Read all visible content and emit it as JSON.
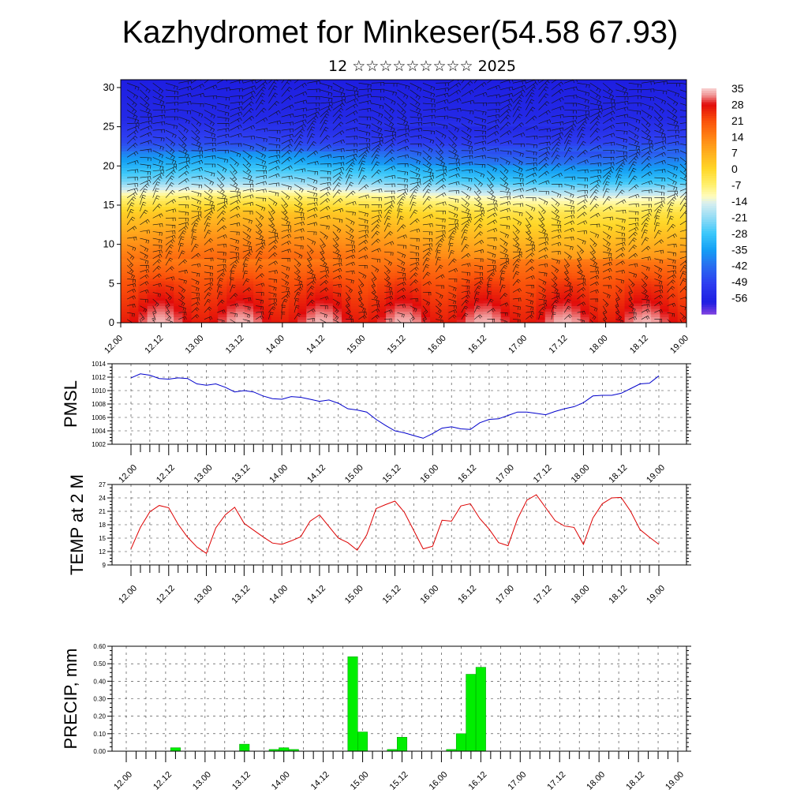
{
  "title": "Kazhydromet for Minkeser(54.58 67.93)",
  "subtitle": "12 ☆☆☆☆☆☆☆☆☆ 2025",
  "colors": {
    "pressure_line": "#0000cc",
    "temp_line": "#dd0000",
    "precip_bar": "#00ee00",
    "precip_bar_edge": "#009900"
  },
  "chart_data": [
    {
      "type": "heatmap",
      "name": "vertical-cross-section",
      "x_ticks": [
        "12.00",
        "12.12",
        "13.00",
        "13.12",
        "14.00",
        "14.12",
        "15.00",
        "15.12",
        "16.00",
        "16.12",
        "17.00",
        "17.12",
        "18.00",
        "18.12",
        "19.00"
      ],
      "yticks": [
        "0",
        "5",
        "10",
        "15",
        "20",
        "25",
        "30"
      ],
      "ylim": [
        0,
        31
      ],
      "colorbar_labels": [
        "35",
        "28",
        "21",
        "14",
        "7",
        "0",
        "-7",
        "-14",
        "-21",
        "-28",
        "-35",
        "-42",
        "-49",
        "-56"
      ],
      "colorbar_range": [
        -63,
        35
      ],
      "temp_profile": {
        "levels": [
          0,
          5,
          10,
          14,
          16,
          18,
          21,
          23,
          26,
          31
        ],
        "values": [
          30,
          22,
          10,
          0,
          -10,
          -25,
          -38,
          -48,
          -55,
          -58
        ]
      },
      "wind_vectors": true
    },
    {
      "type": "line",
      "name": "pmsl",
      "ylabel": "PMSL",
      "yticks": [
        "1002",
        "1004",
        "1006",
        "1008",
        "1010",
        "1012",
        "1014"
      ],
      "ylim": [
        1002,
        1014
      ],
      "x_ticks": [
        "12.00",
        "12.12",
        "13.00",
        "13.12",
        "14.00",
        "14.12",
        "15.00",
        "15.12",
        "16.00",
        "16.12",
        "17.00",
        "17.12",
        "18.00",
        "18.12",
        "19.00"
      ],
      "x_hours": [
        0,
        3,
        6,
        9,
        12,
        15,
        18,
        21,
        24,
        27,
        30,
        33,
        36,
        39,
        42,
        45,
        48,
        51,
        54,
        57,
        60,
        63,
        66,
        69,
        72,
        75,
        78,
        81,
        84,
        87,
        90,
        93,
        96,
        99,
        102,
        105,
        108,
        111,
        114,
        117,
        120,
        123,
        126,
        129,
        132,
        135,
        138,
        141,
        144,
        147,
        150,
        153,
        156,
        159,
        162,
        165,
        168
      ],
      "values": [
        1011.9,
        1012.5,
        1012.3,
        1011.8,
        1011.7,
        1011.9,
        1011.8,
        1011.0,
        1010.8,
        1011.0,
        1010.5,
        1009.8,
        1010.0,
        1009.8,
        1009.2,
        1008.8,
        1008.7,
        1009.1,
        1009.0,
        1008.7,
        1008.4,
        1008.6,
        1008.1,
        1007.3,
        1007.1,
        1006.8,
        1005.7,
        1004.8,
        1004.0,
        1003.7,
        1003.3,
        1002.9,
        1003.6,
        1004.4,
        1004.6,
        1004.3,
        1004.2,
        1005.2,
        1005.7,
        1005.8,
        1006.3,
        1006.8,
        1006.8,
        1006.6,
        1006.4,
        1006.9,
        1007.3,
        1007.6,
        1008.2,
        1009.2,
        1009.3,
        1009.3,
        1009.6,
        1010.3,
        1011.0,
        1011.1,
        1012.2
      ]
    },
    {
      "type": "line",
      "name": "temp-2m",
      "ylabel": "TEMP at 2 M",
      "yticks": [
        "9",
        "12",
        "15",
        "18",
        "21",
        "24",
        "27"
      ],
      "ylim": [
        9,
        27
      ],
      "x_ticks": [
        "12.00",
        "12.12",
        "13.00",
        "13.12",
        "14.00",
        "14.12",
        "15.00",
        "15.12",
        "16.00",
        "16.12",
        "17.00",
        "17.12",
        "18.00",
        "18.12",
        "19.00"
      ],
      "x_hours": [
        0,
        3,
        6,
        9,
        12,
        15,
        18,
        21,
        24,
        27,
        30,
        33,
        36,
        39,
        42,
        45,
        48,
        51,
        54,
        57,
        60,
        63,
        66,
        69,
        72,
        75,
        78,
        81,
        84,
        87,
        90,
        93,
        96,
        99,
        102,
        105,
        108,
        111,
        114,
        117,
        120,
        123,
        126,
        129,
        132,
        135,
        138,
        141,
        144,
        147,
        150,
        153,
        156,
        159,
        162,
        165,
        168
      ],
      "values": [
        12.6,
        17.4,
        20.9,
        22.3,
        21.8,
        18.1,
        15.2,
        13.0,
        11.6,
        17.3,
        20.2,
        21.9,
        18.3,
        16.8,
        15.3,
        13.9,
        13.6,
        14.4,
        15.3,
        18.8,
        20.2,
        17.6,
        15.0,
        14.0,
        12.3,
        15.7,
        21.6,
        22.5,
        23.3,
        20.8,
        16.7,
        12.6,
        13.2,
        19.0,
        18.8,
        22.2,
        22.7,
        19.4,
        17.0,
        14.0,
        13.3,
        19.3,
        23.5,
        24.7,
        21.8,
        18.9,
        17.7,
        17.4,
        13.6,
        19.5,
        22.7,
        24.0,
        24.1,
        21.0,
        16.9,
        15.2,
        13.6
      ]
    },
    {
      "type": "bar",
      "name": "precip",
      "ylabel": "PRECIP, mm",
      "yticks": [
        "0.00",
        "0.10",
        "0.20",
        "0.30",
        "0.40",
        "0.50",
        "0.60"
      ],
      "ylim": [
        0,
        0.6
      ],
      "x_ticks": [
        "12.00",
        "12.12",
        "13.00",
        "13.12",
        "14.00",
        "14.12",
        "15.00",
        "15.12",
        "16.00",
        "16.12",
        "17.00",
        "17.12",
        "18.00",
        "18.12",
        "19.00"
      ],
      "bar_hours": [
        15,
        36,
        45,
        48,
        51,
        69,
        72,
        81,
        84,
        99,
        102,
        105,
        108
      ],
      "values": [
        0.02,
        0.04,
        0.01,
        0.02,
        0.01,
        0.54,
        0.11,
        0.01,
        0.08,
        0.01,
        0.1,
        0.44,
        0.48
      ]
    }
  ]
}
